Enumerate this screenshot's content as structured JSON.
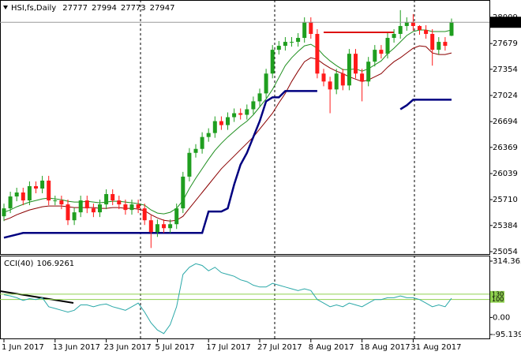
{
  "chart_data": [
    {
      "type": "candlestick",
      "title": "HSI,fs,Daily",
      "categories": [
        "1 Jun 2017",
        null,
        null,
        null,
        null,
        null,
        null,
        null,
        "13 Jun 2017",
        null,
        null,
        null,
        null,
        null,
        null,
        null,
        "23 Jun 2017",
        null,
        null,
        null,
        null,
        null,
        null,
        null,
        "5 Jul 2017",
        null,
        null,
        null,
        null,
        null,
        null,
        null,
        "17 Jul 2017",
        null,
        null,
        null,
        null,
        null,
        null,
        null,
        "27 Jul 2017",
        null,
        null,
        null,
        null,
        null,
        null,
        null,
        "8 Aug 2017",
        null,
        null,
        null,
        null,
        null,
        null,
        null,
        "18 Aug 2017",
        null,
        null,
        null,
        null,
        null,
        null,
        null,
        "31 Aug 2017",
        null,
        null,
        null,
        null,
        null,
        null
      ],
      "open": [
        25500,
        25600,
        25750,
        25800,
        25700,
        25880,
        25850,
        25950,
        25700,
        25700,
        25650,
        25450,
        25550,
        25700,
        25600,
        25550,
        25650,
        25780,
        25700,
        25650,
        25580,
        25650,
        25600,
        25450,
        25300,
        25400,
        25350,
        25400,
        25600,
        26000,
        26300,
        26350,
        26500,
        26550,
        26700,
        26650,
        26750,
        26800,
        26780,
        26850,
        26950,
        27050,
        27300,
        27600,
        27650,
        27700,
        27700,
        27750,
        27950,
        27800,
        27300,
        27200,
        27100,
        27300,
        27150,
        27550,
        27300,
        27200,
        27450,
        27600,
        27550,
        27750,
        27800,
        27900,
        27950,
        27900,
        27850,
        27800,
        27600,
        27700,
        27777
      ],
      "high": [
        25660,
        25810,
        25860,
        25860,
        25940,
        25940,
        26010,
        26010,
        25760,
        25760,
        25710,
        25610,
        25760,
        25760,
        25660,
        25710,
        25840,
        25840,
        25760,
        25710,
        25710,
        25710,
        25660,
        25510,
        25460,
        25460,
        25460,
        25660,
        26060,
        26360,
        26410,
        26560,
        26610,
        26760,
        26760,
        26810,
        26860,
        26860,
        26910,
        27010,
        27110,
        27360,
        27660,
        27710,
        27760,
        27760,
        27810,
        28010,
        28010,
        27860,
        27360,
        27260,
        27360,
        27360,
        27610,
        27610,
        27360,
        27510,
        27660,
        27660,
        27810,
        27860,
        28100,
        28010,
        28050,
        27910,
        27910,
        27860,
        27760,
        27760,
        27994
      ],
      "low": [
        25440,
        25540,
        25690,
        25640,
        25640,
        25790,
        25790,
        25640,
        25640,
        25590,
        25390,
        25390,
        25490,
        25540,
        25490,
        25490,
        25590,
        25640,
        25590,
        25520,
        25520,
        25540,
        25390,
        25100,
        25240,
        25290,
        25290,
        25340,
        25540,
        25940,
        26240,
        26290,
        26440,
        26490,
        26590,
        26590,
        26690,
        26720,
        26720,
        26790,
        26890,
        26990,
        27240,
        27540,
        27590,
        27640,
        27640,
        27690,
        27740,
        27240,
        27140,
        26800,
        27040,
        27090,
        27090,
        27240,
        26950,
        27140,
        27390,
        27490,
        27490,
        27690,
        27740,
        27840,
        27840,
        27790,
        27740,
        27400,
        27540,
        27590,
        27773
      ],
      "close": [
        25600,
        25750,
        25800,
        25700,
        25880,
        25850,
        25950,
        25700,
        25700,
        25650,
        25450,
        25550,
        25700,
        25600,
        25550,
        25650,
        25780,
        25700,
        25650,
        25580,
        25650,
        25600,
        25450,
        25300,
        25400,
        25350,
        25400,
        25600,
        26000,
        26300,
        26350,
        26500,
        26550,
        26700,
        26650,
        26750,
        26800,
        26780,
        26850,
        26950,
        27050,
        27300,
        27600,
        27650,
        27700,
        27700,
        27750,
        27950,
        27800,
        27300,
        27200,
        27100,
        27300,
        27150,
        27550,
        27300,
        27200,
        27450,
        27600,
        27550,
        27750,
        27800,
        27900,
        27950,
        27900,
        27850,
        27800,
        27600,
        27700,
        27650,
        27947
      ],
      "up_color": "#1f9e1f",
      "down_color": "#ff1a1a",
      "overlays": [
        {
          "color": "#1f8f1f",
          "width": 1,
          "values": [
            25550,
            25580,
            25620,
            25650,
            25680,
            25700,
            25720,
            25730,
            25720,
            25710,
            25690,
            25680,
            25680,
            25690,
            25680,
            25670,
            25680,
            25690,
            25690,
            25680,
            25670,
            25660,
            25640,
            25580,
            25540,
            25530,
            25550,
            25600,
            25700,
            25850,
            25980,
            26100,
            26220,
            26330,
            26420,
            26500,
            26570,
            26640,
            26700,
            26780,
            26880,
            26980,
            27100,
            27250,
            27400,
            27500,
            27580,
            27650,
            27670,
            27620,
            27530,
            27460,
            27400,
            27350,
            27350,
            27360,
            27330,
            27360,
            27410,
            27460,
            27550,
            27620,
            27700,
            27780,
            27830,
            27850,
            27850,
            27830,
            27830,
            27830,
            27850
          ]
        },
        {
          "color": "#8b0000",
          "width": 1,
          "values": [
            25450,
            25480,
            25520,
            25550,
            25580,
            25600,
            25620,
            25630,
            25630,
            25630,
            25620,
            25610,
            25610,
            25610,
            25610,
            25600,
            25600,
            25610,
            25610,
            25600,
            25600,
            25590,
            25570,
            25520,
            25480,
            25450,
            25440,
            25450,
            25500,
            25600,
            25700,
            25800,
            25900,
            26000,
            26100,
            26180,
            26260,
            26340,
            26420,
            26500,
            26600,
            26700,
            26800,
            26930,
            27050,
            27200,
            27330,
            27450,
            27500,
            27480,
            27420,
            27370,
            27330,
            27300,
            27260,
            27230,
            27200,
            27220,
            27260,
            27300,
            27380,
            27450,
            27500,
            27560,
            27620,
            27650,
            27640,
            27560,
            27540,
            27540,
            27560
          ]
        },
        {
          "color": "#000080",
          "width": 2.5,
          "values": [
            25230,
            25250,
            25270,
            25290,
            25290,
            25290,
            25290,
            25290,
            25290,
            25290,
            25290,
            25290,
            25290,
            25290,
            25290,
            25290,
            25290,
            25290,
            25290,
            25290,
            25290,
            25290,
            25290,
            25290,
            25290,
            25290,
            25290,
            25290,
            25290,
            25290,
            25290,
            25290,
            25560,
            25560,
            25560,
            25600,
            25900,
            26150,
            26300,
            26500,
            26700,
            26950,
            27000,
            27000,
            27080,
            27080,
            27080,
            27080,
            27080,
            27080,
            null,
            null,
            null,
            null,
            null,
            null,
            null,
            null,
            null,
            null,
            null,
            null,
            26850,
            26900,
            26970,
            26970,
            26970,
            26970,
            26970,
            26970,
            26970
          ]
        },
        {
          "color": "#dd1111",
          "width": 2,
          "values": [
            null,
            null,
            null,
            null,
            null,
            null,
            null,
            null,
            null,
            null,
            null,
            null,
            null,
            null,
            null,
            null,
            null,
            null,
            null,
            null,
            null,
            null,
            null,
            null,
            null,
            null,
            null,
            null,
            null,
            null,
            null,
            null,
            null,
            null,
            null,
            null,
            null,
            null,
            null,
            null,
            null,
            null,
            null,
            null,
            null,
            null,
            null,
            null,
            null,
            null,
            27820,
            27820,
            27820,
            27820,
            27820,
            27820,
            27820,
            27820,
            27820,
            27820,
            27820,
            27820,
            null,
            null,
            null,
            null,
            null,
            null,
            null,
            null,
            null
          ]
        }
      ],
      "ylim": [
        25024,
        28228
      ],
      "yticks": [
        25054,
        25384,
        25710,
        26039,
        26369,
        26694,
        27024,
        27354,
        27679,
        28009
      ]
    },
    {
      "type": "line",
      "title": "CCI(40)",
      "color": "#2aa8a8",
      "values": [
        127,
        120,
        110,
        95,
        105,
        100,
        110,
        60,
        50,
        40,
        30,
        40,
        70,
        70,
        60,
        70,
        75,
        60,
        50,
        40,
        60,
        80,
        30,
        -30,
        -70,
        -90,
        -40,
        60,
        240,
        280,
        300,
        290,
        260,
        280,
        250,
        240,
        230,
        210,
        200,
        180,
        170,
        170,
        190,
        180,
        170,
        160,
        150,
        160,
        150,
        100,
        80,
        60,
        70,
        60,
        80,
        70,
        60,
        80,
        100,
        100,
        110,
        110,
        120,
        110,
        110,
        100,
        80,
        60,
        70,
        60,
        106.9261
      ],
      "levels": [
        130,
        100
      ],
      "level_color": "#8fd14f",
      "ylim": [
        -95.1391,
        314.3633
      ],
      "yticks": [
        -95.1391,
        {
          "value": 0,
          "label": "0.00"
        },
        314.3633
      ]
    }
  ]
}
